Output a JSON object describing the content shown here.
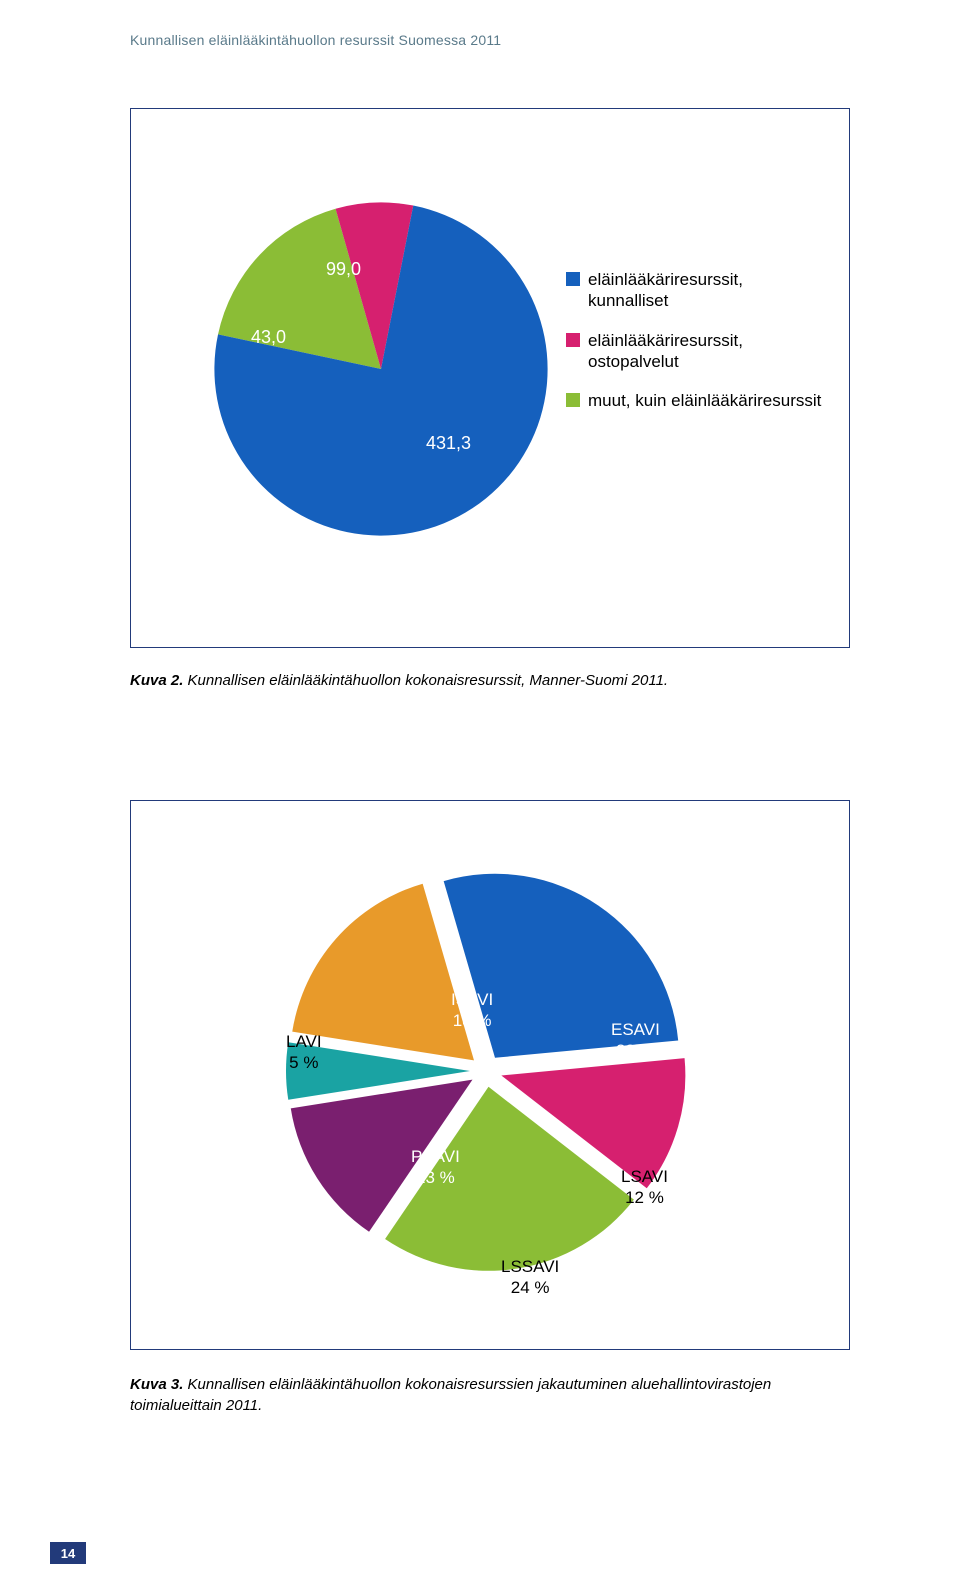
{
  "header": "Kunnallisen eläinlääkintähuollon resurssit Suomessa 2011",
  "page_number": "14",
  "caption1_bold": "Kuva 2.",
  "caption1_text": " Kunnallisen eläinlääkintähuollon kokonaisresurssit, Manner-Suomi 2011.",
  "caption2_bold": "Kuva 3.",
  "caption2_text": " Kunnallisen eläinlääkintähuollon kokonaisresurssien jakautuminen aluehallintovirastojen toimialueittain 2011.",
  "chart1": {
    "type": "pie",
    "background_color": "#ffffff",
    "border_color": "#223a7a",
    "label_fontsize": 18,
    "label_color": "#ffffff",
    "slices": [
      {
        "key": "kunnalliset",
        "value": 431.3,
        "label": "431,3",
        "color": "#1560bd",
        "legend": "eläinlääkäriresurssit, kunnalliset"
      },
      {
        "key": "ostopalvelut",
        "value": 43.0,
        "label": "43,0",
        "color": "#d6206f",
        "legend": "eläinlääkäriresurssit, ostopalvelut"
      },
      {
        "key": "muut",
        "value": 99.0,
        "label": "99,0",
        "color": "#8bbd36",
        "legend": "muut, kuin eläinlääkäriresurssit"
      }
    ]
  },
  "chart2": {
    "type": "pie",
    "background_color": "#ffffff",
    "border_color": "#223a7a",
    "explode_gap": 8,
    "label_fontsize": 17,
    "start_angle": -81,
    "slices": [
      {
        "key": "ISAVI",
        "value": 18,
        "label_line1": "ISAVI",
        "label_line2": "18 %",
        "color": "#e89a2a"
      },
      {
        "key": "ESAVI",
        "value": 28,
        "label_line1": "ESAVI",
        "label_line2": "28 %",
        "color": "#1560bd"
      },
      {
        "key": "LSAVI",
        "value": 12,
        "label_line1": "LSAVI",
        "label_line2": "12 %",
        "color": "#d6206f"
      },
      {
        "key": "LSSAVI",
        "value": 24,
        "label_line1": "LSSAVI",
        "label_line2": "24 %",
        "color": "#8bbd36"
      },
      {
        "key": "PSAVI",
        "value": 13,
        "label_line1": "PSAVI",
        "label_line2": "13 %",
        "color": "#7a1f6f"
      },
      {
        "key": "LAVI",
        "value": 5,
        "label_line1": "LAVI",
        "label_line2": "5 %",
        "color": "#1aa3a3"
      }
    ]
  }
}
